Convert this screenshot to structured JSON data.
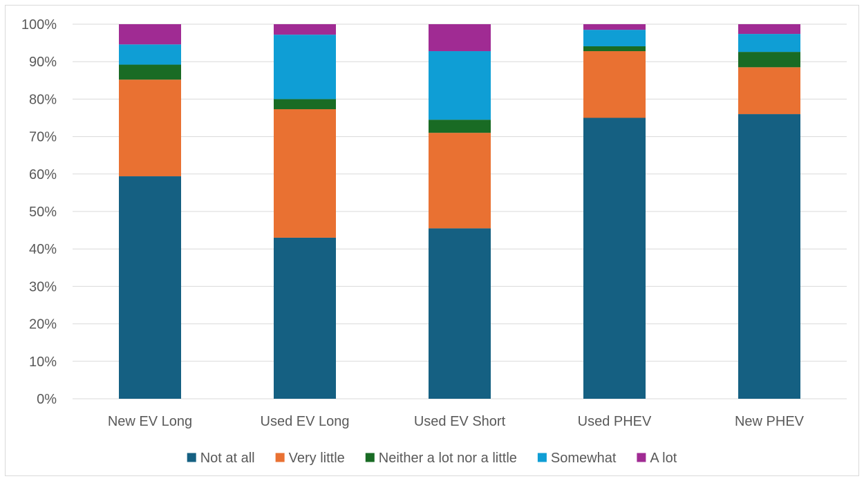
{
  "chart_data": {
    "type": "bar",
    "stacked": true,
    "percent_stacked": true,
    "title": "",
    "xlabel": "",
    "ylabel": "",
    "ylim": [
      0,
      100
    ],
    "y_ticks": [
      "0%",
      "10%",
      "20%",
      "30%",
      "40%",
      "50%",
      "60%",
      "70%",
      "80%",
      "90%",
      "100%"
    ],
    "grid": true,
    "legend_position": "bottom",
    "categories": [
      "New EV Long",
      "Used EV Long",
      "Used EV Short",
      "Used PHEV",
      "New PHEV"
    ],
    "series": [
      {
        "name": "Not at all",
        "color": "#156082",
        "values": [
          59.4,
          43.0,
          45.5,
          75.0,
          76.0
        ]
      },
      {
        "name": "Very little",
        "color": "#E97132",
        "values": [
          25.8,
          34.3,
          25.5,
          17.8,
          12.5
        ]
      },
      {
        "name": "Neither a lot nor a little",
        "color": "#196B24",
        "values": [
          4.0,
          2.7,
          3.5,
          1.3,
          4.1
        ]
      },
      {
        "name": "Somewhat",
        "color": "#0F9ED5",
        "values": [
          5.4,
          17.2,
          18.3,
          4.4,
          4.8
        ]
      },
      {
        "name": "A lot",
        "color": "#A02B93",
        "values": [
          5.4,
          2.8,
          7.2,
          1.5,
          2.6
        ]
      }
    ]
  }
}
